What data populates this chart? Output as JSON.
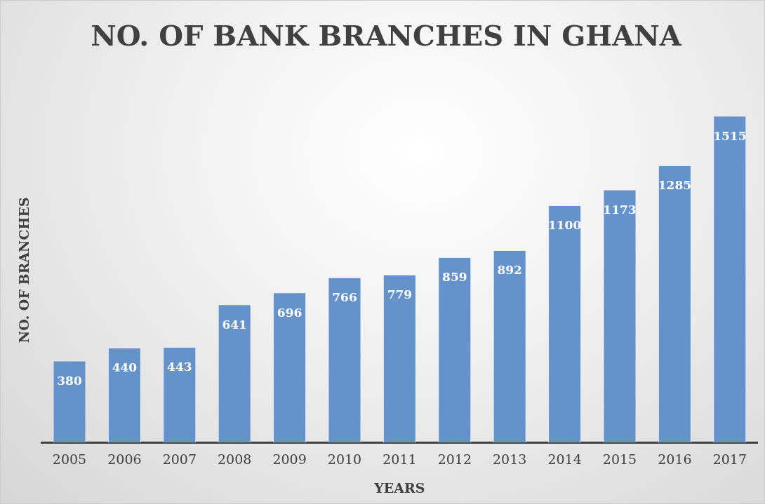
{
  "chart_data": {
    "type": "bar",
    "title": "NO. OF BANK BRANCHES IN GHANA",
    "xlabel": "YEARS",
    "ylabel": "NO. OF BRANCHES",
    "categories": [
      "2005",
      "2006",
      "2007",
      "2008",
      "2009",
      "2010",
      "2011",
      "2012",
      "2013",
      "2014",
      "2015",
      "2016",
      "2017"
    ],
    "values": [
      380,
      440,
      443,
      641,
      696,
      766,
      779,
      859,
      892,
      1100,
      1173,
      1285,
      1515
    ],
    "color": "#6592c8",
    "data_labels": true,
    "grid": false,
    "legend": false,
    "tick_labels": "x"
  }
}
